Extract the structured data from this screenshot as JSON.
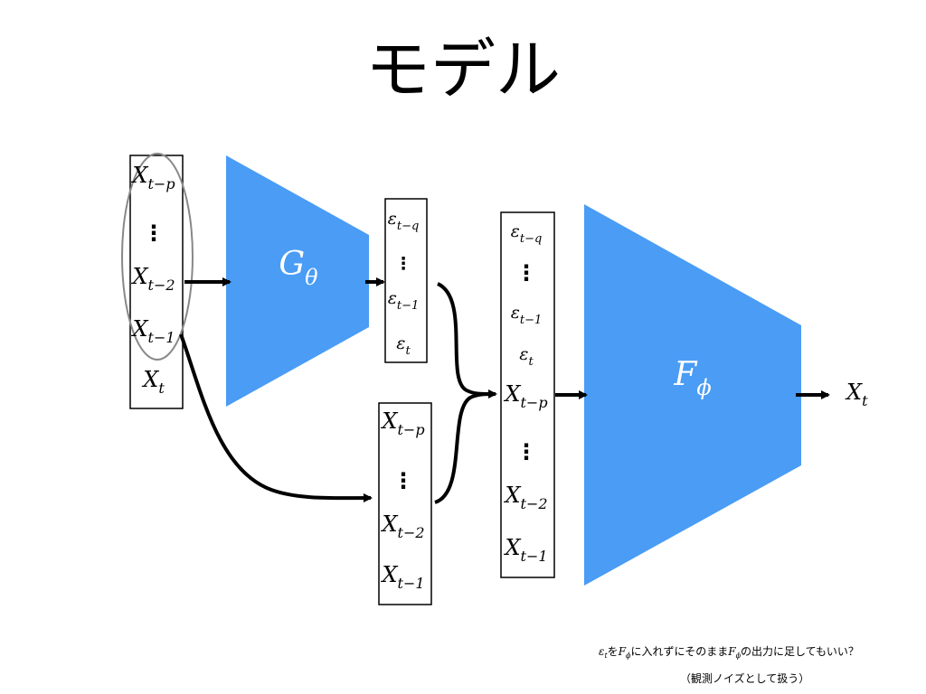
{
  "title": "モデル",
  "input_column": [
    {
      "base": "X",
      "sub": "t−p"
    },
    {
      "base": "⋮",
      "sub": ""
    },
    {
      "base": "X",
      "sub": "t−2"
    },
    {
      "base": "X",
      "sub": "t−1"
    },
    {
      "base": "X",
      "sub": "t"
    }
  ],
  "encoder": {
    "base": "G",
    "sub": "θ"
  },
  "epsilon_column": [
    {
      "base": "ε",
      "sub": "t−q"
    },
    {
      "base": "⋮",
      "sub": ""
    },
    {
      "base": "ε",
      "sub": "t−1"
    },
    {
      "base": "ε",
      "sub": "t"
    }
  ],
  "lag_column": [
    {
      "base": "X",
      "sub": "t−p"
    },
    {
      "base": "⋮",
      "sub": ""
    },
    {
      "base": "X",
      "sub": "t−2"
    },
    {
      "base": "X",
      "sub": "t−1"
    }
  ],
  "combined_column": [
    {
      "base": "ε",
      "sub": "t−q"
    },
    {
      "base": "⋮",
      "sub": ""
    },
    {
      "base": "ε",
      "sub": "t−1"
    },
    {
      "base": "ε",
      "sub": "t"
    },
    {
      "base": "X",
      "sub": "t−p"
    },
    {
      "base": "⋮",
      "sub": ""
    },
    {
      "base": "X",
      "sub": "t−2"
    },
    {
      "base": "X",
      "sub": "t−1"
    }
  ],
  "decoder": {
    "base": "F",
    "sub": "ϕ"
  },
  "output": {
    "base": "X",
    "sub": "t"
  },
  "note": {
    "line1_eps": "ε",
    "line1_eps_sub": "t",
    "line1_a": "を",
    "line1_F": "F",
    "line1_F_sub": "ϕ",
    "line1_b": "に入れずにそのまま",
    "line1_F2": "F",
    "line1_F2_sub": "ϕ",
    "line1_c": "の出力に足してもいい？",
    "line2": "（観測ノイズとして扱う）"
  },
  "colors": {
    "accent": "#4a9cf5",
    "stroke": "#000000",
    "ellipse": "#888888"
  }
}
